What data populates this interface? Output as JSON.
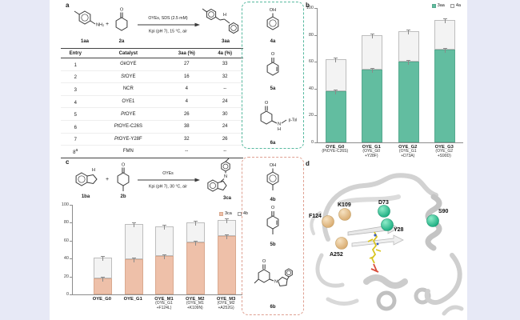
{
  "colors": {
    "background": "#e7e9f6",
    "bar_3aa_green": "#62bda0",
    "bar_3ca_salmon": "#eec0a9",
    "bar_byproduct_light": "#f3f3f3",
    "teal_box_border": "#56b99f",
    "pink_box_border": "#dfa091",
    "nitrogen_blue": "#3b6fc4",
    "sphere_tan": "#e2b97f",
    "sphere_green": "#27cfa2"
  },
  "panel_a": {
    "label": "a",
    "scheme": {
      "reactant1": "1aa",
      "reactant2": "2a",
      "product": "3aa",
      "plus": "+",
      "conditions_above": "OYEs, SDS (2.5 mM)",
      "conditions_below": "Kpi (pH 7), 15 °C, air",
      "amine_group": "NH₂",
      "ketone_o": "O",
      "nh_h": "H"
    },
    "table": {
      "headers": [
        "Entry",
        "Catalyst",
        "3aa (%)",
        "4a (%)"
      ],
      "rows": [
        {
          "entry": "1",
          "entry_sup": "",
          "cat_italic": "Gk",
          "cat": "OYE",
          "v3aa": "27",
          "v4a": "33"
        },
        {
          "entry": "2",
          "entry_sup": "",
          "cat_italic": "St",
          "cat": "OYE",
          "v3aa": "16",
          "v4a": "32"
        },
        {
          "entry": "3",
          "entry_sup": "",
          "cat_italic": "",
          "cat": "NCR",
          "v3aa": "4",
          "v4a": "--"
        },
        {
          "entry": "4",
          "entry_sup": "",
          "cat_italic": "",
          "cat": "OYE1",
          "v3aa": "4",
          "v4a": "24"
        },
        {
          "entry": "5",
          "entry_sup": "",
          "cat_italic": "Pt",
          "cat": "OYE",
          "v3aa": "26",
          "v4a": "30"
        },
        {
          "entry": "6",
          "entry_sup": "",
          "cat_italic": "Pt",
          "cat": "OYE-C26S",
          "v3aa": "38",
          "v4a": "24"
        },
        {
          "entry": "7",
          "entry_sup": "",
          "cat_italic": "Pt",
          "cat": "OYE-Y28F",
          "v3aa": "32",
          "v4a": "26"
        },
        {
          "entry": "8",
          "entry_sup": "a",
          "cat_italic": "",
          "cat": "FMN",
          "v3aa": "--",
          "v4a": "--"
        }
      ]
    }
  },
  "byproducts_box_a": {
    "items": [
      {
        "label": "4a"
      },
      {
        "label": "5a"
      },
      {
        "label": "6a"
      }
    ],
    "oh": "OH",
    "o": "O",
    "n": "N",
    "h": "H",
    "ptol": "p-Tol"
  },
  "byproducts_box_b": {
    "items": [
      {
        "label": "4b"
      },
      {
        "label": "5b"
      },
      {
        "label": "6b"
      }
    ],
    "oh": "OH",
    "o": "O",
    "n": "N"
  },
  "panel_b": {
    "label": "b"
  },
  "panel_c": {
    "label": "c",
    "scheme": {
      "reactant1": "1ba",
      "reactant2": "2b",
      "product": "3ca",
      "plus": "+",
      "conditions_above": "OYEs",
      "conditions_below": "Kpi (pH 7), 30 °C, air",
      "nh_h": "H",
      "ketone_o": "O",
      "n": "N"
    }
  },
  "panel_d": {
    "label": "d",
    "residues": [
      {
        "name": "F124",
        "color": "#e2b97f"
      },
      {
        "name": "K109",
        "color": "#e2b97f"
      },
      {
        "name": "D73",
        "color": "#27cfa2"
      },
      {
        "name": "Y28",
        "color": "#27cfa2"
      },
      {
        "name": "S90",
        "color": "#27cfa2"
      },
      {
        "name": "A252",
        "color": "#e2b97f"
      }
    ]
  },
  "chart_data": [
    {
      "id": "panel_b_chart",
      "type": "bar",
      "subtype": "stacked",
      "title": "",
      "xlabel": "",
      "ylabel": "",
      "ylim": [
        0,
        100
      ],
      "yticks": [
        "0",
        "20",
        "40",
        "60",
        "80",
        "100"
      ],
      "grid": false,
      "legend_position": "top-right",
      "categories": [
        "OYE_G0",
        "OYE_G1",
        "OYE_G2",
        "OYE_G3"
      ],
      "subs": [
        [
          "(PtOYE-C26S)"
        ],
        [
          "(OYE_G0",
          "+Y28F)"
        ],
        [
          "(OYE_G1",
          "+D73A)"
        ],
        [
          "(OYE_G2",
          "+S90D)"
        ]
      ],
      "series": [
        {
          "name": "3aa",
          "color": "#62bda0",
          "values": [
            38,
            54,
            60,
            69
          ]
        },
        {
          "name": "4a",
          "color": "#f3f3f3",
          "values": [
            24,
            26,
            23,
            22
          ]
        }
      ]
    },
    {
      "id": "panel_c_chart",
      "type": "bar",
      "subtype": "stacked",
      "title": "",
      "xlabel": "",
      "ylabel": "",
      "ylim": [
        0,
        100
      ],
      "yticks": [
        "0",
        "20",
        "40",
        "60",
        "80",
        "100"
      ],
      "grid": false,
      "legend_position": "top-right",
      "categories": [
        "OYE_G0",
        "OYE_G1",
        "OYE_M1",
        "OYE_M2",
        "OYE_M3"
      ],
      "subs": [
        [],
        [],
        [
          "(OYE_G1",
          "+F124L)"
        ],
        [
          "(OYE_M1",
          "+K109N)"
        ],
        [
          "(OYE_M2",
          "+A252G)"
        ]
      ],
      "series": [
        {
          "name": "3ca",
          "color": "#eec0a9",
          "values": [
            18,
            39,
            43,
            58,
            65
          ]
        },
        {
          "name": "4b",
          "color": "#f3f3f3",
          "values": [
            23,
            40,
            33,
            22,
            18
          ]
        }
      ]
    }
  ]
}
